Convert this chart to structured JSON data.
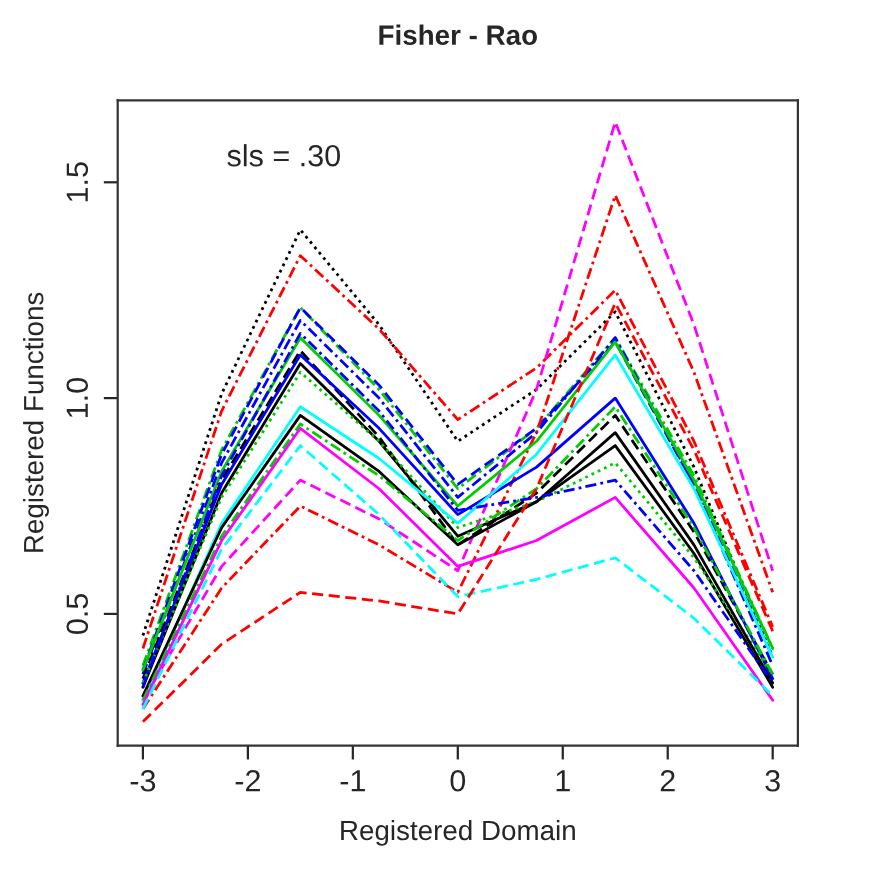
{
  "chart_data": {
    "type": "line",
    "title": "Fisher - Rao",
    "xlabel": "Registered Domain",
    "ylabel": "Registered Functions",
    "annotations": [
      "sls = .30"
    ],
    "x": [
      -3,
      -2.25,
      -1.5,
      -0.75,
      0,
      0.75,
      1.5,
      2.25,
      3
    ],
    "xlim": [
      -3.24,
      3.24
    ],
    "xticks": [
      -3,
      -2,
      -1,
      0,
      1,
      2,
      3
    ],
    "ylim": [
      0.195,
      1.69
    ],
    "yticks": [
      {
        "value": 0.5,
        "label": "0.5"
      },
      {
        "value": 1.0,
        "label": "1.0"
      },
      {
        "value": 1.5,
        "label": "1.5"
      }
    ],
    "grid": false,
    "legend": false,
    "marker": "none",
    "series": [
      {
        "color": "#000000",
        "line_style": "dotted",
        "values": [
          0.45,
          1.01,
          1.39,
          1.17,
          0.9,
          1.02,
          1.2,
          0.84,
          0.4
        ]
      },
      {
        "color": "#ff0000",
        "line_style": "dashdot",
        "values": [
          0.42,
          0.97,
          1.33,
          1.16,
          0.95,
          1.07,
          1.25,
          0.9,
          0.47
        ]
      },
      {
        "color": "#00cd00",
        "line_style": "dashdot",
        "values": [
          0.38,
          0.88,
          1.21,
          1.02,
          0.79,
          0.93,
          1.14,
          0.82,
          0.42
        ]
      },
      {
        "color": "#0000ff",
        "line_style": "dashed",
        "values": [
          0.37,
          0.87,
          1.21,
          1.03,
          0.8,
          0.93,
          1.13,
          0.8,
          0.4
        ]
      },
      {
        "color": "#0000ff",
        "line_style": "dashdot",
        "values": [
          0.36,
          0.85,
          1.18,
          1.0,
          0.77,
          0.92,
          1.14,
          0.8,
          0.38
        ]
      },
      {
        "color": "#ff0000",
        "line_style": "dashdot",
        "values": [
          0.28,
          0.56,
          0.75,
          0.66,
          0.55,
          0.92,
          1.47,
          1.06,
          0.55
        ]
      },
      {
        "color": "#ff00ff",
        "line_style": "dashed",
        "values": [
          0.3,
          0.61,
          0.81,
          0.72,
          0.6,
          1.02,
          1.64,
          1.17,
          0.6
        ]
      },
      {
        "color": "#00cd00",
        "line_style": "solid",
        "values": [
          0.37,
          0.83,
          1.14,
          0.96,
          0.75,
          0.9,
          1.13,
          0.81,
          0.42
        ]
      },
      {
        "color": "#000000",
        "line_style": "dashed",
        "values": [
          0.35,
          0.81,
          1.11,
          0.91,
          0.66,
          0.78,
          0.96,
          0.69,
          0.36
        ]
      },
      {
        "color": "#0000ff",
        "line_style": "solid",
        "values": [
          0.34,
          0.8,
          1.1,
          0.93,
          0.73,
          0.84,
          1.0,
          0.71,
          0.35
        ]
      },
      {
        "color": "#000000",
        "line_style": "solid",
        "values": [
          0.33,
          0.78,
          1.08,
          0.9,
          0.68,
          0.76,
          0.89,
          0.64,
          0.33
        ]
      },
      {
        "color": "#00cd00",
        "line_style": "dotted",
        "values": [
          0.34,
          0.77,
          1.06,
          0.9,
          0.7,
          0.76,
          0.85,
          0.63,
          0.36
        ]
      },
      {
        "color": "#00ffff",
        "line_style": "solid",
        "values": [
          0.3,
          0.71,
          0.98,
          0.86,
          0.71,
          0.87,
          1.1,
          0.79,
          0.4
        ]
      },
      {
        "color": "#000000",
        "line_style": "solid",
        "values": [
          0.31,
          0.7,
          0.96,
          0.83,
          0.66,
          0.76,
          0.92,
          0.66,
          0.34
        ]
      },
      {
        "color": "#00cd00",
        "line_style": "dashdot",
        "values": [
          0.3,
          0.68,
          0.94,
          0.82,
          0.67,
          0.79,
          0.98,
          0.7,
          0.36
        ]
      },
      {
        "color": "#ff00ff",
        "line_style": "solid",
        "values": [
          0.29,
          0.67,
          0.93,
          0.79,
          0.61,
          0.67,
          0.77,
          0.56,
          0.3
        ]
      },
      {
        "color": "#00ffff",
        "line_style": "dashed",
        "values": [
          0.28,
          0.65,
          0.89,
          0.73,
          0.54,
          0.58,
          0.63,
          0.49,
          0.31
        ]
      },
      {
        "color": "#ff0000",
        "line_style": "dashed",
        "values": [
          0.25,
          0.43,
          0.55,
          0.53,
          0.5,
          0.79,
          1.22,
          0.88,
          0.46
        ]
      },
      {
        "color": "#0000ff",
        "line_style": "dashdot",
        "values": [
          0.33,
          0.82,
          1.15,
          0.97,
          0.74,
          0.77,
          0.81,
          0.6,
          0.34
        ]
      }
    ]
  }
}
